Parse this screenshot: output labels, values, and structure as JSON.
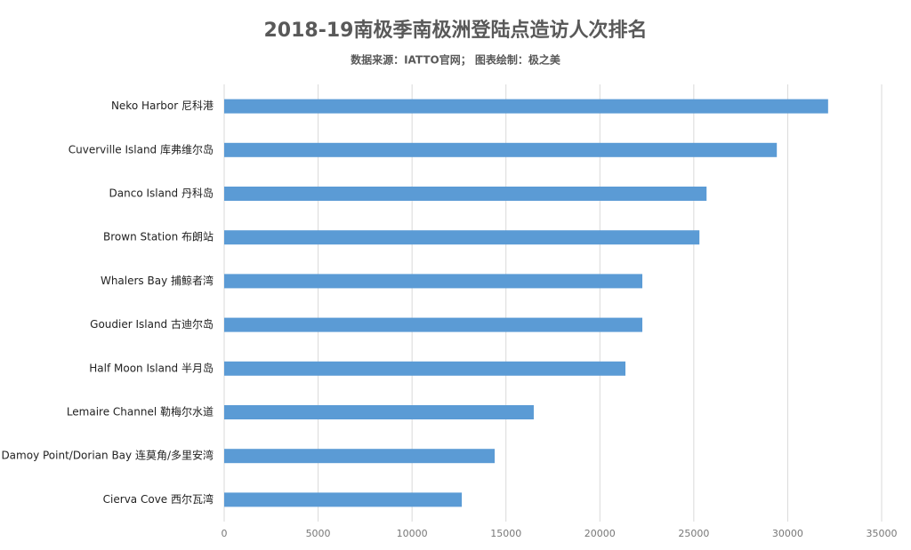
{
  "chart_data": {
    "type": "barh",
    "title": "2018-19南极季南极洲登陆点造访人次排名",
    "subtitle": "数据来源：IATTO官网； 图表绘制：极之美",
    "categories": [
      "Neko Harbor 尼科港",
      "Cuverville Island 库弗维尔岛",
      "Danco Island 丹科岛",
      "Brown Station 布朗站",
      "Whalers Bay 捕鲸者湾",
      "Goudier Island 古迪尔岛",
      "Half Moon Island 半月岛",
      "Lemaire Channel 勒梅尔水道",
      "Damoy Point/Dorian Bay 连莫角/多里安湾",
      "Cierva Cove 西尔瓦湾"
    ],
    "values": [
      32150,
      29420,
      25680,
      25300,
      22260,
      22260,
      21360,
      16480,
      14400,
      12650
    ],
    "color": "#5b9bd5",
    "xlim": [
      0,
      35000
    ],
    "xticks": [
      0,
      5000,
      10000,
      15000,
      20000,
      25000,
      30000,
      35000
    ],
    "grid": true
  }
}
